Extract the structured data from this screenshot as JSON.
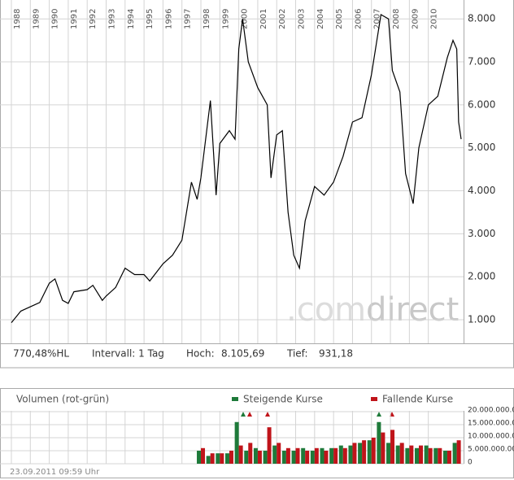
{
  "chart_data": [
    {
      "type": "line",
      "x": [
        1988.0,
        1988.5,
        1989.0,
        1989.5,
        1990.0,
        1990.3,
        1990.7,
        1991.0,
        1991.3,
        1992.0,
        1992.3,
        1992.8,
        1993.0,
        1993.5,
        1994.0,
        1994.5,
        1995.0,
        1995.3,
        1996.0,
        1996.5,
        1997.0,
        1997.5,
        1997.8,
        1998.0,
        1998.5,
        1998.8,
        1999.0,
        1999.5,
        1999.8,
        2000.0,
        2000.2,
        2000.5,
        2001.0,
        2001.5,
        2001.7,
        2002.0,
        2002.3,
        2002.6,
        2002.9,
        2003.2,
        2003.5,
        2004.0,
        2004.5,
        2005.0,
        2005.5,
        2006.0,
        2006.5,
        2007.0,
        2007.5,
        2007.9,
        2008.1,
        2008.5,
        2008.8,
        2009.2,
        2009.5,
        2010.0,
        2010.5,
        2011.0,
        2011.3,
        2011.5,
        2011.6,
        2011.73
      ],
      "values": [
        931,
        1200,
        1300,
        1400,
        1850,
        1950,
        1450,
        1380,
        1650,
        1700,
        1800,
        1450,
        1550,
        1750,
        2200,
        2050,
        2050,
        1900,
        2300,
        2500,
        2850,
        4200,
        3800,
        4300,
        6100,
        3900,
        5100,
        5400,
        5200,
        7300,
        8000,
        7000,
        6400,
        6000,
        4300,
        5300,
        5400,
        3500,
        2500,
        2200,
        3300,
        4100,
        3900,
        4200,
        4800,
        5600,
        5700,
        6700,
        8100,
        8000,
        6800,
        6300,
        4400,
        3700,
        5000,
        6000,
        6200,
        7100,
        7500,
        7300,
        5600,
        5200
      ],
      "color": "#000000",
      "xlim": [
        1987.4,
        2011.86
      ],
      "ylim": [
        450,
        8440
      ],
      "xticks": [
        1988,
        1989,
        1990,
        1991,
        1992,
        1993,
        1994,
        1995,
        1996,
        1997,
        1998,
        1999,
        2000,
        2001,
        2002,
        2003,
        2004,
        2005,
        2006,
        2007,
        2008,
        2009,
        2010
      ],
      "yticks": [
        {
          "value": 1000,
          "label": "1.000"
        },
        {
          "value": 2000,
          "label": "2.000"
        },
        {
          "value": 3000,
          "label": "3.000"
        },
        {
          "value": 4000,
          "label": "4.000"
        },
        {
          "value": 5000,
          "label": "5.000"
        },
        {
          "value": 6000,
          "label": "6.000"
        },
        {
          "value": 7000,
          "label": "7.000"
        },
        {
          "value": 8000,
          "label": "8.000"
        }
      ],
      "grid": true
    },
    {
      "type": "bar",
      "title": "Volumen (rot-grün)",
      "x": [
        1998.0,
        1998.5,
        1999.0,
        1999.5,
        2000.0,
        2000.5,
        2001.0,
        2001.5,
        2002.0,
        2002.5,
        2003.0,
        2003.5,
        2004.0,
        2004.5,
        2005.0,
        2005.5,
        2006.0,
        2006.5,
        2007.0,
        2007.5,
        2008.0,
        2008.5,
        2009.0,
        2009.5,
        2010.0,
        2010.5,
        2011.0,
        2011.5
      ],
      "series": [
        {
          "name": "Steigende Kurse",
          "color": "#1e7a3a",
          "values": [
            5000000,
            3000000,
            4000000,
            4000000,
            16000000,
            5000000,
            6000000,
            5000000,
            7000000,
            5000000,
            5000000,
            6000000,
            5000000,
            6000000,
            6000000,
            7000000,
            7000000,
            8000000,
            9000000,
            16000000,
            8000000,
            7000000,
            6000000,
            6000000,
            7000000,
            6000000,
            5000000,
            8000000
          ]
        },
        {
          "name": "Fallende Kurse",
          "color": "#c0141a",
          "values": [
            6000000,
            4000000,
            4000000,
            5000000,
            7000000,
            8000000,
            5000000,
            14000000,
            8000000,
            6000000,
            6000000,
            5000000,
            6000000,
            5000000,
            6000000,
            6000000,
            8000000,
            9000000,
            10000000,
            12000000,
            13000000,
            8000000,
            7000000,
            7000000,
            6000000,
            6000000,
            5000000,
            9000000
          ]
        }
      ],
      "xlim": [
        1987.4,
        2011.86
      ],
      "ylim": [
        0,
        20300000
      ],
      "yticks": [
        {
          "value": 0,
          "label": "0"
        },
        {
          "value": 5000000,
          "label": "5.000.000.00"
        },
        {
          "value": 10000000,
          "label": "10.000.000.00"
        },
        {
          "value": 15000000,
          "label": "15.000.000.00"
        },
        {
          "value": 20000000,
          "label": "20.000.000.00"
        }
      ],
      "grid": true
    }
  ],
  "stats": {
    "performance": "770,48%HL",
    "interval": "Intervall: 1 Tag",
    "high_label": "Hoch:",
    "high": "8.105,69",
    "low_label": "Tief:",
    "low": "931,18"
  },
  "watermark": {
    "dot_com": ".com",
    "direct": "direct"
  },
  "timestamp": "23.09.2011 09:59 Uhr"
}
